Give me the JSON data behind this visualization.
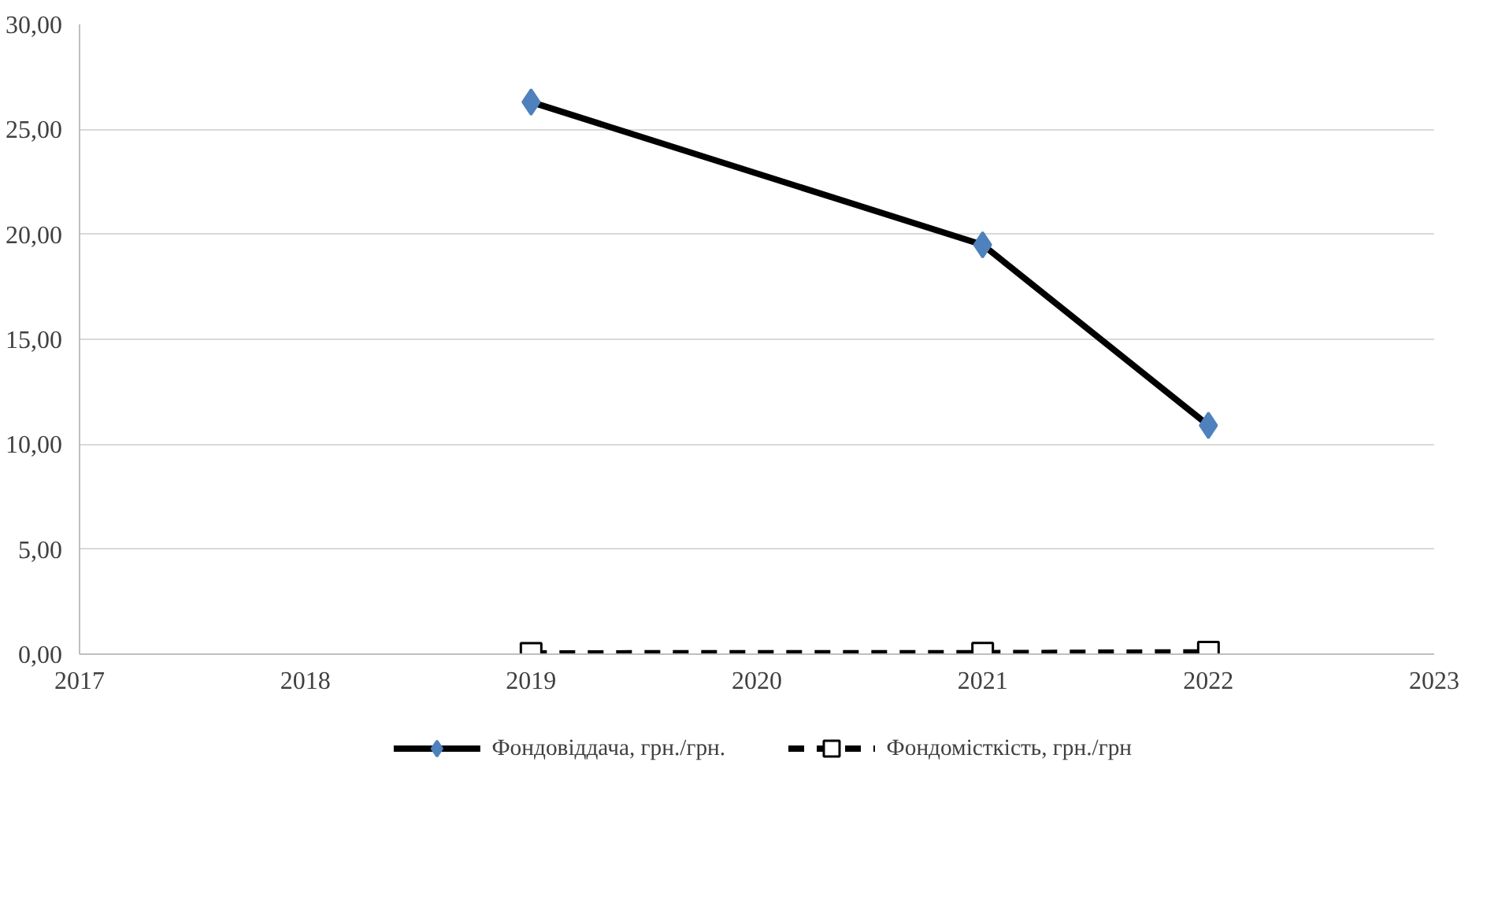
{
  "chart_data": {
    "type": "line",
    "x": [
      2019,
      2021,
      2022
    ],
    "series": [
      {
        "name": "Фондовіддача, грн./грн.",
        "color": "#000000",
        "marker": "diamond",
        "line_style": "solid",
        "values": [
          26.3,
          19.5,
          10.9
        ]
      },
      {
        "name": "Фондомісткість, грн./грн",
        "color": "#000000",
        "marker": "square",
        "line_style": "dashed",
        "values": [
          0.04,
          0.05,
          0.09
        ]
      }
    ],
    "xlim": [
      2017,
      2023
    ],
    "xticks": [
      2017,
      2018,
      2019,
      2020,
      2021,
      2022,
      2023
    ],
    "ylim": [
      0,
      30
    ],
    "yticks": [
      {
        "value": 0,
        "label": "0,00"
      },
      {
        "value": 5,
        "label": "5,00"
      },
      {
        "value": 10,
        "label": "10,00"
      },
      {
        "value": 15,
        "label": "15,00"
      },
      {
        "value": 20,
        "label": "20,00"
      },
      {
        "value": 25,
        "label": "25,00"
      },
      {
        "value": 30,
        "label": "30,00"
      }
    ],
    "grid": "y",
    "legend": "bottom"
  }
}
